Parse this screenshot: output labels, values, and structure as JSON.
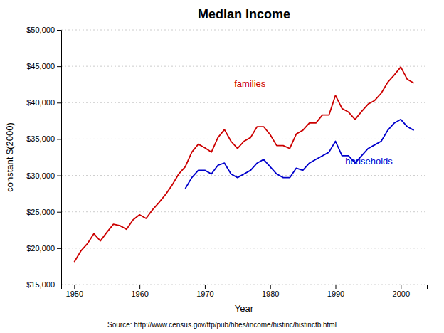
{
  "chart_data": {
    "type": "line",
    "title": "Median income",
    "xlabel": "Year",
    "ylabel": "constant $(2000)",
    "source": "Source: http://www.census.gov/ftp/pub/hhes/income/histinc/histinctb.html",
    "xlim": [
      1948,
      2004
    ],
    "ylim": [
      15000,
      50000
    ],
    "xticks": [
      1950,
      1960,
      1970,
      1980,
      1990,
      2000
    ],
    "yticks": [
      {
        "value": 15000,
        "label": "$15,000"
      },
      {
        "value": 20000,
        "label": "$20,000"
      },
      {
        "value": 25000,
        "label": "$25,000"
      },
      {
        "value": 30000,
        "label": "$30,000"
      },
      {
        "value": 35000,
        "label": "$35,000"
      },
      {
        "value": 40000,
        "label": "$40,000"
      },
      {
        "value": 45000,
        "label": "$45,000"
      },
      {
        "value": 50000,
        "label": "$50,000"
      }
    ],
    "grid": true,
    "series": [
      {
        "name": "families",
        "color": "#cc0000",
        "x": [
          1950,
          1951,
          1952,
          1953,
          1954,
          1955,
          1956,
          1957,
          1958,
          1959,
          1960,
          1961,
          1962,
          1963,
          1964,
          1965,
          1966,
          1967,
          1968,
          1969,
          1970,
          1971,
          1972,
          1973,
          1974,
          1975,
          1976,
          1977,
          1978,
          1979,
          1980,
          1981,
          1982,
          1983,
          1984,
          1985,
          1986,
          1987,
          1988,
          1989,
          1990,
          1991,
          1992,
          1993,
          1994,
          1995,
          1996,
          1997,
          1998,
          1999,
          2000,
          2001,
          2002
        ],
        "values": [
          18100,
          19600,
          20600,
          22000,
          21000,
          22200,
          23300,
          23100,
          22600,
          23900,
          24600,
          24100,
          25300,
          26300,
          27400,
          28700,
          30200,
          31200,
          33200,
          34300,
          33800,
          33200,
          35200,
          36300,
          34700,
          33700,
          34700,
          35200,
          36700,
          36700,
          35600,
          34100,
          34100,
          33700,
          35700,
          36200,
          37200,
          37200,
          38300,
          38300,
          41000,
          39200,
          38700,
          37700,
          38800,
          39800,
          40300,
          41300,
          42800,
          43800,
          44900,
          43200,
          42700
        ]
      },
      {
        "name": "households",
        "color": "#0000cc",
        "x": [
          1967,
          1968,
          1969,
          1970,
          1971,
          1972,
          1973,
          1974,
          1975,
          1976,
          1977,
          1978,
          1979,
          1980,
          1981,
          1982,
          1983,
          1984,
          1985,
          1986,
          1987,
          1988,
          1989,
          1990,
          1991,
          1992,
          1993,
          1994,
          1995,
          1996,
          1997,
          1998,
          1999,
          2000,
          2001,
          2002
        ],
        "values": [
          28200,
          29700,
          30700,
          30700,
          30200,
          31400,
          31700,
          30200,
          29700,
          30200,
          30700,
          31700,
          32200,
          31200,
          30200,
          29700,
          29700,
          31000,
          30700,
          31700,
          32200,
          32700,
          33200,
          34700,
          32700,
          32700,
          31700,
          32700,
          33700,
          34200,
          34700,
          36200,
          37200,
          37700,
          36700,
          36200
        ]
      }
    ],
    "annotations": [
      {
        "text": "families",
        "x": 1974.5,
        "y": 42200,
        "color": "#cc0000"
      },
      {
        "text": "households",
        "x": 1991.5,
        "y": 31500,
        "color": "#0000cc"
      }
    ]
  }
}
